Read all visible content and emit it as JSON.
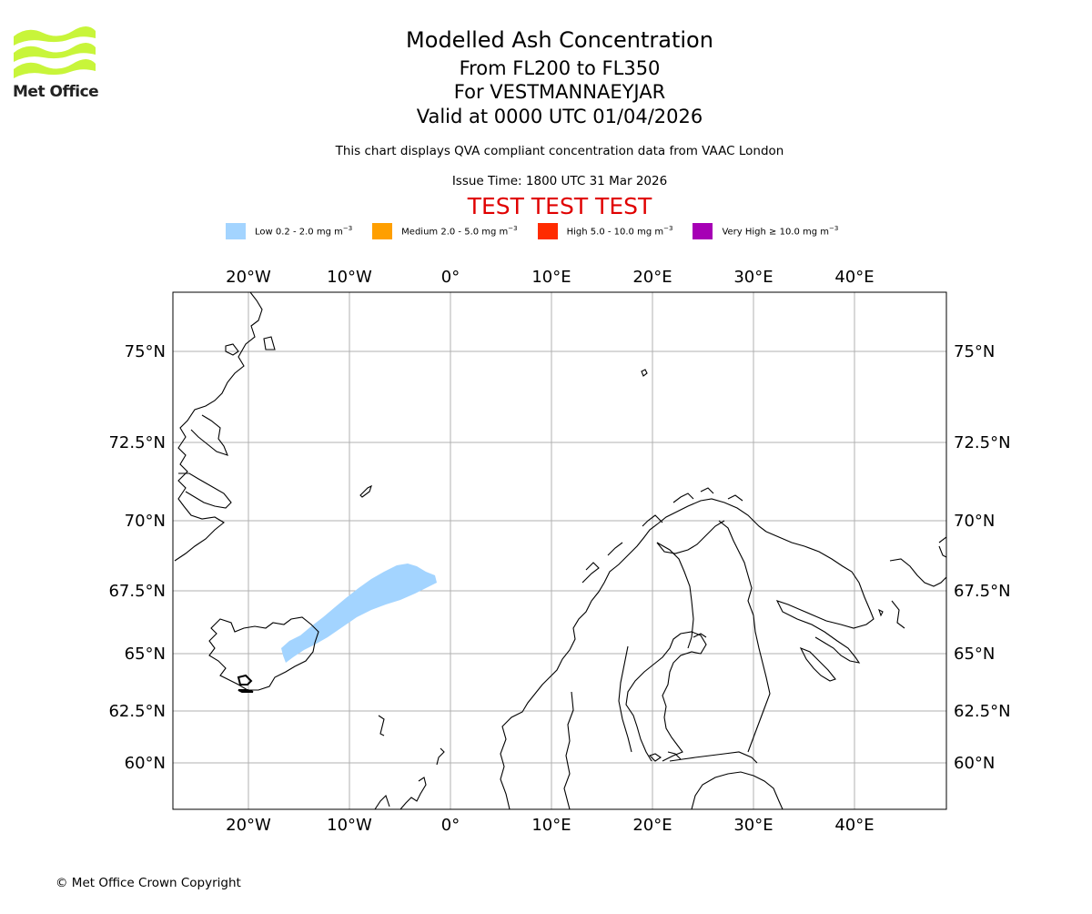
{
  "logo": {
    "text": "Met Office",
    "color": "#c8f53a"
  },
  "header": {
    "title": "Modelled Ash Concentration",
    "levels": "From FL200 to FL350",
    "volcano": "For VESTMANNAEYJAR",
    "valid": "Valid at 0000 UTC 01/04/2026",
    "note": "This chart displays QVA compliant concentration data from VAAC London",
    "issue": "Issue Time: 1800 UTC 31 Mar 2026",
    "test_banner": "TEST TEST TEST"
  },
  "legend": [
    {
      "label": "Low 0.2 - 2.0 mg m",
      "color": "#a3d4ff"
    },
    {
      "label": "Medium 2.0 - 5.0 mg m",
      "color": "#ff9f00"
    },
    {
      "label": "High 5.0 - 10.0 mg m",
      "color": "#ff2b00"
    },
    {
      "label": "Very High ≥ 10.0 mg m",
      "color": "#a600b5"
    }
  ],
  "legend_unit_exp": "−3",
  "map": {
    "lon_ticks": [
      "20°W",
      "10°W",
      "0°",
      "10°E",
      "20°E",
      "30°E",
      "40°E"
    ],
    "lat_ticks": [
      "75°N",
      "72.5°N",
      "70°N",
      "67.5°N",
      "65°N",
      "62.5°N",
      "60°N"
    ],
    "grid": true,
    "ash_level": "Low"
  },
  "footer": {
    "copyright": "© Met Office Crown Copyright"
  }
}
